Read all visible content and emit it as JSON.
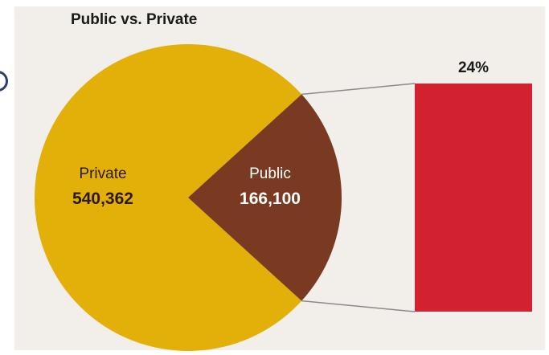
{
  "title": "Public vs. Private",
  "colors": {
    "private": "#e2b008",
    "public": "#7a3a22",
    "bar": "#d2212f",
    "connector": "#8a8a8a",
    "panel": "#f2efea"
  },
  "chart_data": {
    "type": "pie",
    "title": "Public vs. Private",
    "slices": [
      {
        "name": "Private",
        "value": 540362,
        "value_label": "540,362"
      },
      {
        "name": "Public",
        "value": 166100,
        "value_label": "166,100"
      }
    ],
    "breakout_bar": {
      "label": "24%",
      "value": 24,
      "of_slice": "Public"
    }
  }
}
